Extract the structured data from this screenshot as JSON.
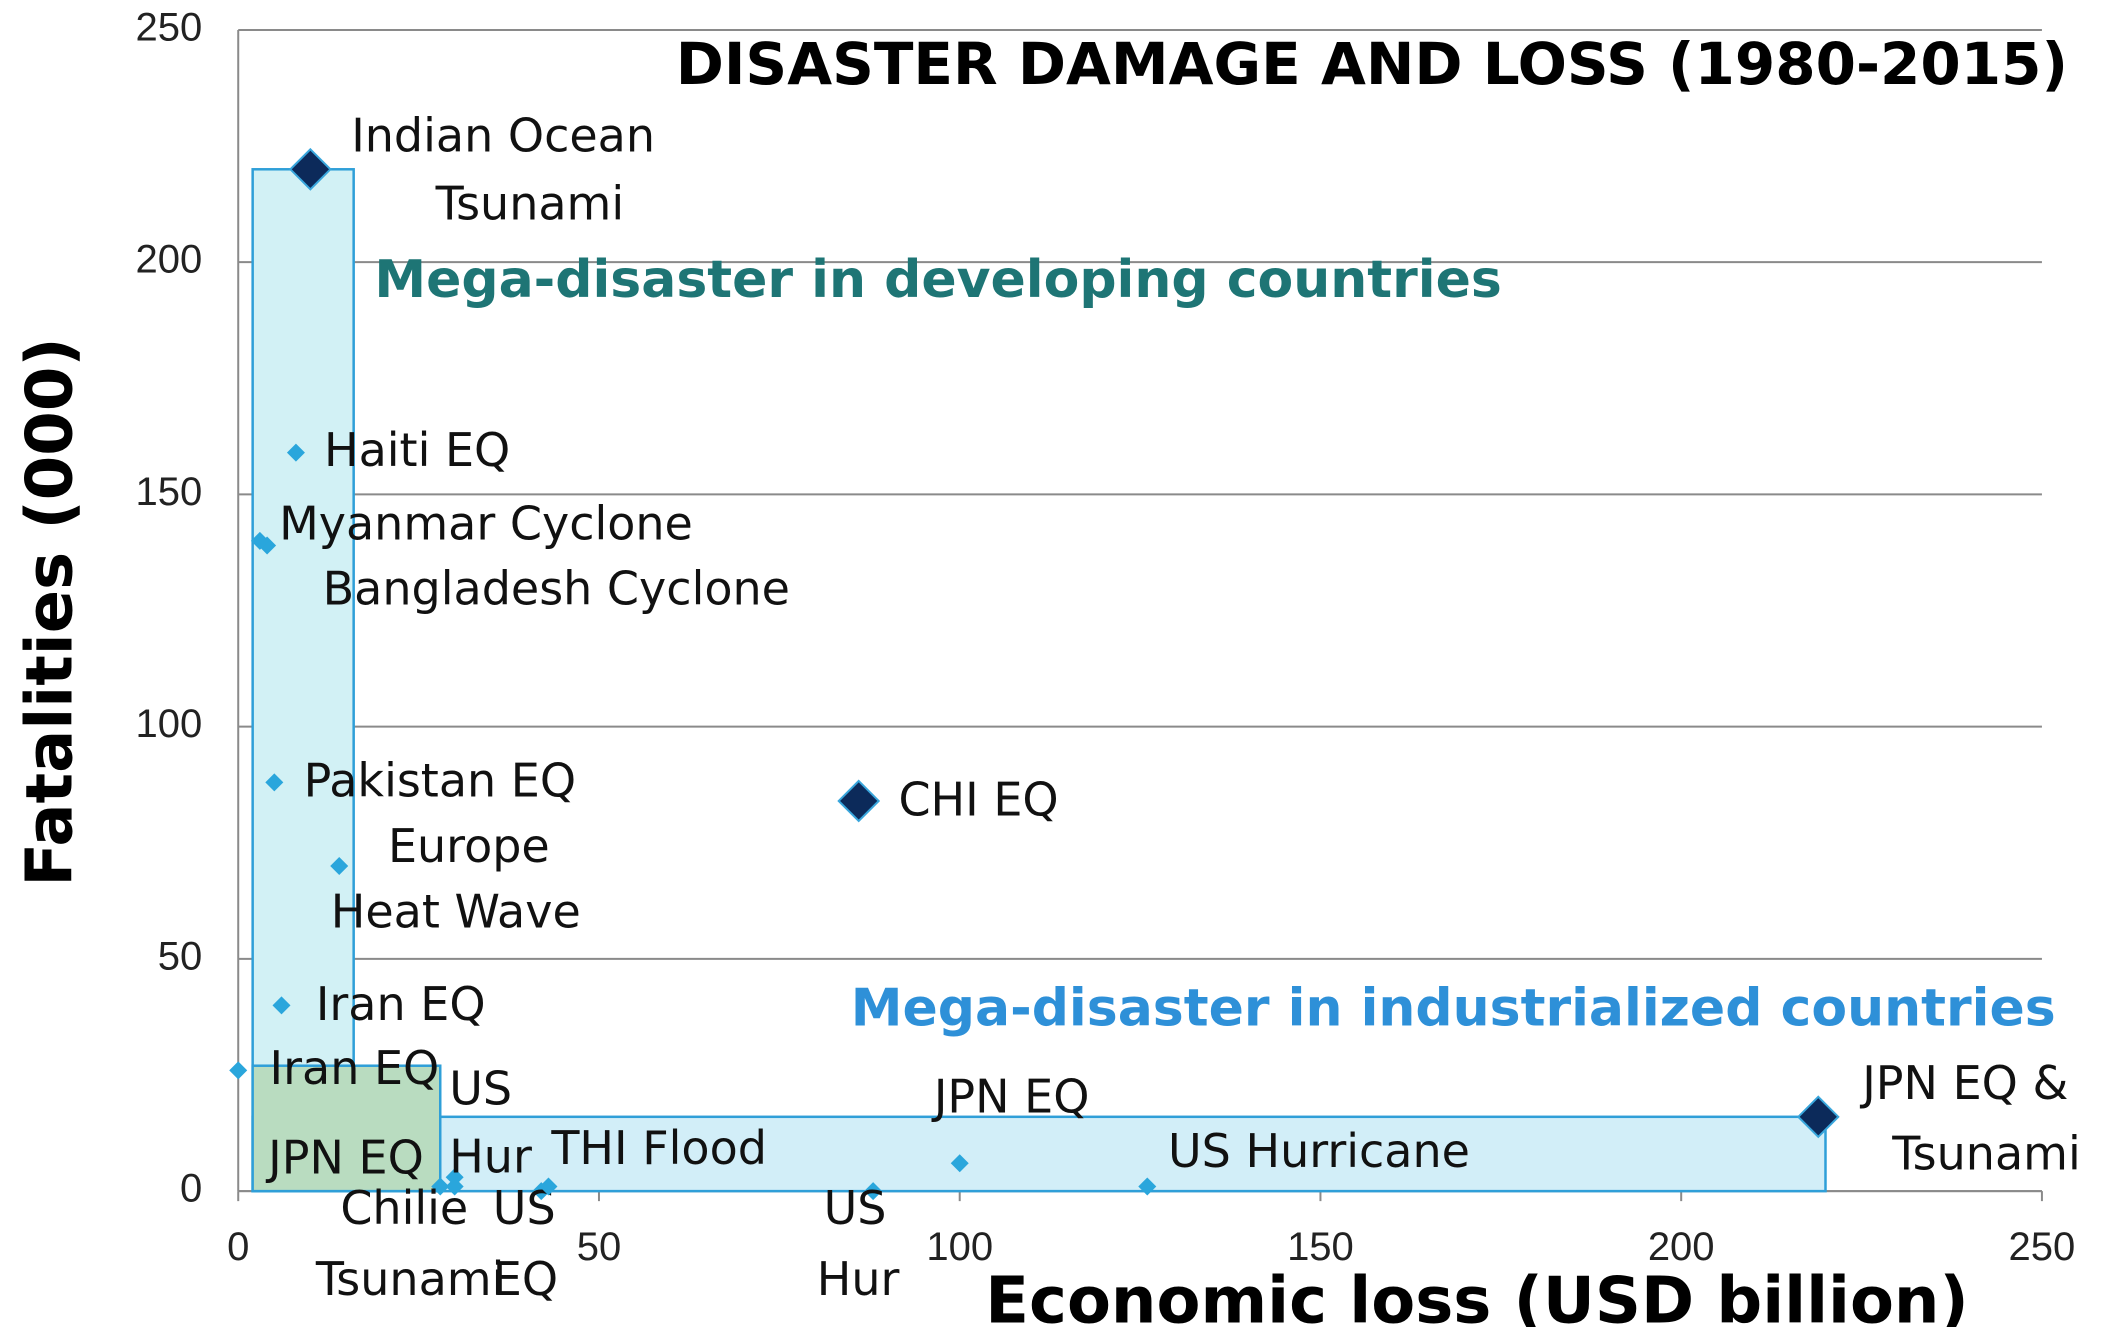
{
  "chart_data": {
    "type": "scatter",
    "title": "DISASTER DAMAGE AND LOSS (1980-2015)",
    "x_label": "Economic loss (USD billion)",
    "y_label": "Fatalities (000)",
    "xlim": [
      0,
      250
    ],
    "xticks": [
      0,
      50,
      100,
      150,
      200,
      250
    ],
    "ylim": [
      0,
      250
    ],
    "yticks": [
      0,
      50,
      100,
      150,
      200,
      250
    ],
    "grid": true,
    "regions": [
      {
        "label": "Mega-disaster in developing countries",
        "x": [
          2,
          16
        ],
        "y": [
          0,
          220
        ],
        "color": "#d2f1f5",
        "label_color": "#1e7575"
      },
      {
        "label": "Mega-disaster in industrialized countries",
        "x": [
          2,
          220
        ],
        "y": [
          0,
          16
        ],
        "color": "#d2eef8",
        "label_color": "#2e90d8"
      },
      {
        "x": [
          2,
          28
        ],
        "y": [
          0,
          27
        ],
        "color": "#b9dcc0"
      }
    ],
    "points": [
      {
        "name": [
          "Indian  Ocean",
          "Tsunami"
        ],
        "x": 10,
        "y": 220,
        "color": "#0c2a5a",
        "marker": "large"
      },
      {
        "name": [
          "Haiti EQ"
        ],
        "x": 8,
        "y": 159,
        "color": "#2aa6dc",
        "marker": "small"
      },
      {
        "name": [
          "Myanmar Cyclone"
        ],
        "x": 4,
        "y": 139,
        "color": "#2aa6dc",
        "marker": "small"
      },
      {
        "name": [
          "Bangladesh Cyclone"
        ],
        "x": 3,
        "y": 140,
        "color": "#2aa6dc",
        "marker": "small"
      },
      {
        "name": [
          "Pakistan EQ"
        ],
        "x": 5,
        "y": 88,
        "color": "#2aa6dc",
        "marker": "small"
      },
      {
        "name": [
          "Europe",
          "Heat Wave"
        ],
        "x": 14,
        "y": 70,
        "color": "#2aa6dc",
        "marker": "small"
      },
      {
        "name": [
          "Iran EQ"
        ],
        "x": 6,
        "y": 40,
        "color": "#2aa6dc",
        "marker": "small"
      },
      {
        "name": [
          "Iran EQ"
        ],
        "x": 0,
        "y": 26,
        "color": "#2aa6dc",
        "marker": "small"
      },
      {
        "name": [
          "US",
          "Hur"
        ],
        "x": 30,
        "y": 3,
        "color": "#2aa6dc",
        "marker": "small"
      },
      {
        "name": [
          "JPN EQ"
        ],
        "x": 28,
        "y": 1,
        "color": "#2aa6dc",
        "marker": "small"
      },
      {
        "name": [
          "Chilie",
          "Tsunami"
        ],
        "x": 30,
        "y": 1,
        "color": "#2aa6dc",
        "marker": "small"
      },
      {
        "name": [
          "US",
          "EQ"
        ],
        "x": 42,
        "y": 0,
        "color": "#2aa6dc",
        "marker": "small"
      },
      {
        "name": [
          "THI Flood"
        ],
        "x": 43,
        "y": 1,
        "color": "#2aa6dc",
        "marker": "small"
      },
      {
        "name": [
          "JPN EQ"
        ],
        "x": 100,
        "y": 6,
        "color": "#2aa6dc",
        "marker": "small"
      },
      {
        "name": [
          "US Hurricane"
        ],
        "x": 126,
        "y": 1,
        "color": "#2aa6dc",
        "marker": "small"
      },
      {
        "name": [
          "US",
          "Hur"
        ],
        "x": 88,
        "y": 0,
        "color": "#2aa6dc",
        "marker": "small"
      },
      {
        "name": [
          "CHI EQ"
        ],
        "x": 86,
        "y": 84,
        "color": "#0c2a5a",
        "marker": "large",
        "label_color": "#7030a0"
      },
      {
        "name": [
          "JPN EQ &",
          "Tsunami"
        ],
        "x": 219,
        "y": 16,
        "color": "#0c2a5a",
        "marker": "large"
      }
    ]
  }
}
